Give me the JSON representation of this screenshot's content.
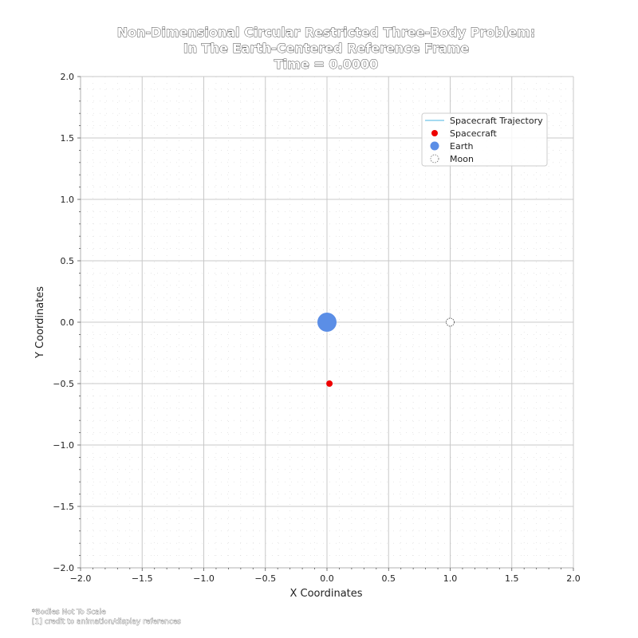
{
  "chart_data": {
    "type": "scatter",
    "title_lines": [
      "Non-Dimensional Circular Restricted Three-Body Problem:",
      "In The Earth-Centered Reference Frame",
      "Time = 0.0000"
    ],
    "xlabel": "X Coordinates",
    "ylabel": "Y Coordinates",
    "xlim": [
      -2.0,
      2.0
    ],
    "ylim": [
      -2.0,
      2.0
    ],
    "x_ticks": [
      -2.0,
      -1.5,
      -1.0,
      -0.5,
      0.0,
      0.5,
      1.0,
      1.5,
      2.0
    ],
    "y_ticks": [
      -2.0,
      -1.5,
      -1.0,
      -0.5,
      0.0,
      0.5,
      1.0,
      1.5,
      2.0
    ],
    "x_tick_labels": [
      "−2.0",
      "−1.5",
      "−1.0",
      "−0.5",
      "0.0",
      "0.5",
      "1.0",
      "1.5",
      "2.0"
    ],
    "y_tick_labels": [
      "−2.0",
      "−1.5",
      "−1.0",
      "−0.5",
      "0.0",
      "0.5",
      "1.0",
      "1.5",
      "2.0"
    ],
    "grid": true,
    "legend_position": "top-right",
    "series": [
      {
        "name": "Spacecraft Trajectory",
        "kind": "line",
        "color": "#87ceeb",
        "points": []
      },
      {
        "name": "Spacecraft",
        "kind": "point",
        "color": "#ee0000",
        "x": 0.02,
        "y": -0.5
      },
      {
        "name": "Earth",
        "kind": "point",
        "color": "#5b8ee6",
        "x": 0.0,
        "y": 0.0
      },
      {
        "name": "Moon",
        "kind": "point",
        "color": "#ffffff",
        "x": 1.0,
        "y": 0.0
      }
    ],
    "footnotes": [
      "*Bodies Not To Scale",
      "[1] credit to animation/display references"
    ]
  }
}
